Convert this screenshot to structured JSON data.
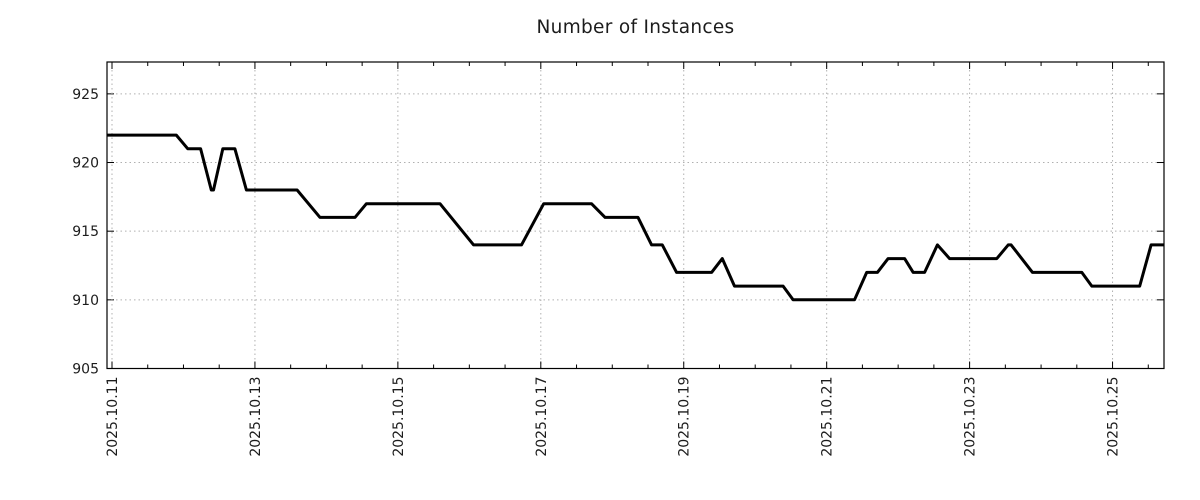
{
  "window": {
    "background": "#ffffff"
  },
  "chart_data": {
    "type": "line",
    "title": "Number of Instances",
    "grid": {
      "show": true,
      "style": "dotted",
      "color": "#b0b0b0"
    },
    "legend": null,
    "x_axis": {
      "unit": "date (October 2025, day-of-month with fraction)",
      "range": [
        10.93,
        25.72
      ],
      "major_ticks": [
        {
          "value": 11,
          "label": "2025.10.11"
        },
        {
          "value": 13,
          "label": "2025.10.13"
        },
        {
          "value": 15,
          "label": "2025.10.15"
        },
        {
          "value": 17,
          "label": "2025.10.17"
        },
        {
          "value": 19,
          "label": "2025.10.19"
        },
        {
          "value": 21,
          "label": "2025.10.21"
        },
        {
          "value": 23,
          "label": "2025.10.23"
        },
        {
          "value": 25,
          "label": "2025.10.25"
        }
      ],
      "minor_tick_interval": 0.5,
      "label_rotation_deg": -90
    },
    "y_axis": {
      "range": [
        905,
        927.32
      ],
      "major_ticks": [
        {
          "value": 905,
          "label": "905"
        },
        {
          "value": 910,
          "label": "910"
        },
        {
          "value": 915,
          "label": "915"
        },
        {
          "value": 920,
          "label": "920"
        },
        {
          "value": 925,
          "label": "925"
        }
      ]
    },
    "series": [
      {
        "name": "instances",
        "color": "#000000",
        "line_width": 3,
        "points": [
          [
            10.93,
            922
          ],
          [
            11.9,
            922
          ],
          [
            12.06,
            921
          ],
          [
            12.24,
            921
          ],
          [
            12.39,
            918
          ],
          [
            12.42,
            918
          ],
          [
            12.55,
            921
          ],
          [
            12.72,
            921
          ],
          [
            12.88,
            918
          ],
          [
            13.59,
            918
          ],
          [
            13.91,
            916
          ],
          [
            14.4,
            916
          ],
          [
            14.56,
            917
          ],
          [
            15.59,
            917
          ],
          [
            16.06,
            914
          ],
          [
            16.73,
            914
          ],
          [
            17.04,
            917
          ],
          [
            17.71,
            917
          ],
          [
            17.9,
            916
          ],
          [
            18.36,
            916
          ],
          [
            18.55,
            914
          ],
          [
            18.7,
            914
          ],
          [
            18.9,
            912
          ],
          [
            19.39,
            912
          ],
          [
            19.54,
            913
          ],
          [
            19.71,
            911
          ],
          [
            20.39,
            911
          ],
          [
            20.53,
            910
          ],
          [
            21.39,
            910
          ],
          [
            21.56,
            912
          ],
          [
            21.71,
            912
          ],
          [
            21.86,
            913
          ],
          [
            22.09,
            913
          ],
          [
            22.21,
            912
          ],
          [
            22.37,
            912
          ],
          [
            22.55,
            914
          ],
          [
            22.72,
            913
          ],
          [
            23.38,
            913
          ],
          [
            23.54,
            914
          ],
          [
            23.58,
            914
          ],
          [
            23.88,
            912
          ],
          [
            24.57,
            912
          ],
          [
            24.71,
            911
          ],
          [
            25.38,
            911
          ],
          [
            25.54,
            914
          ],
          [
            25.72,
            914
          ]
        ]
      }
    ]
  }
}
